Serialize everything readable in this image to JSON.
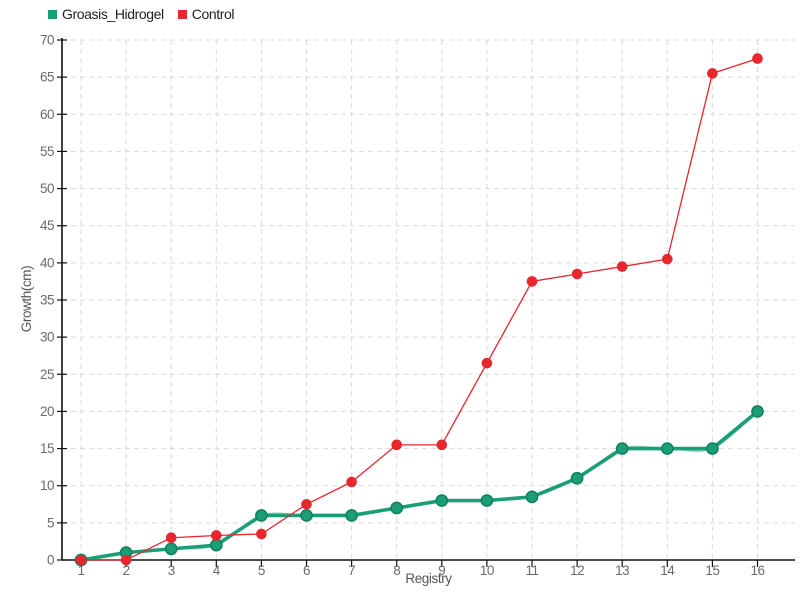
{
  "chart_data": {
    "type": "line",
    "title": "",
    "xlabel": "Registry",
    "ylabel": "Growth(cm)",
    "x": [
      1,
      2,
      3,
      4,
      5,
      6,
      7,
      8,
      9,
      10,
      11,
      12,
      13,
      14,
      15,
      16
    ],
    "x_tick_labels": [
      "1",
      "2",
      "3",
      "4",
      "5",
      "6",
      "7",
      "8",
      "9",
      "10",
      "11",
      "12",
      "13",
      "14",
      "15",
      "16"
    ],
    "y_tick_labels": [
      "0",
      "5",
      "10",
      "15",
      "20",
      "25",
      "30",
      "35",
      "40",
      "45",
      "50",
      "55",
      "60",
      "65",
      "70"
    ],
    "ylim": [
      0,
      70
    ],
    "ytick_step": 5,
    "grid": true,
    "grid_style": "dashed",
    "legend_position": "top-left",
    "series": [
      {
        "name": "Groasis_Hidrogel",
        "color": "#1b9e77",
        "marker_stroke": "#0e8061",
        "line_width": 3.6,
        "values": [
          0,
          1,
          1.5,
          2,
          6,
          6,
          6,
          7,
          8,
          8,
          8.5,
          11,
          15,
          15,
          15,
          20
        ]
      },
      {
        "name": "Control",
        "color": "#e8262d",
        "marker_stroke": "#e8262d",
        "line_width": 1.3,
        "values": [
          0,
          0,
          3,
          3.3,
          3.5,
          7.5,
          10.5,
          15.5,
          15.5,
          26.5,
          37.5,
          38.5,
          39.5,
          40.5,
          65.5,
          67.5
        ]
      }
    ],
    "colors": {
      "background": "#ffffff",
      "grid": "#dadada",
      "axis": "#111111",
      "tick_text": "#6a6a6a",
      "axis_label_text": "#555555",
      "legend_text": "#222222"
    }
  }
}
